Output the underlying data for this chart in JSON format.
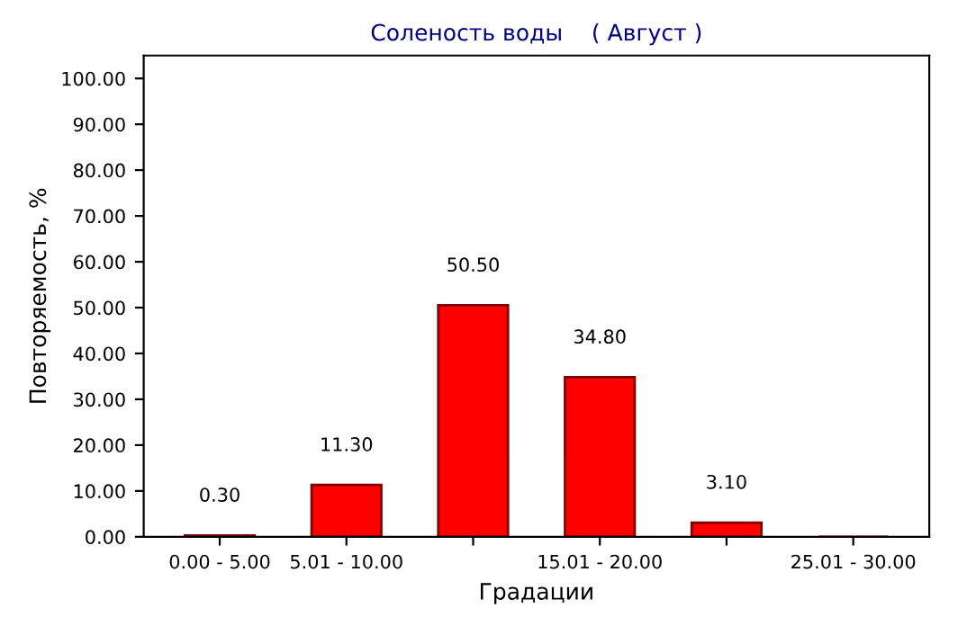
{
  "chart_data": {
    "type": "bar",
    "title": "Соленость воды    ( Август )",
    "xlabel": "Градации",
    "ylabel": "Повторяемость, %",
    "categories": [
      "0.00 - 5.00",
      "5.01 - 10.00",
      null,
      "15.01 - 20.00",
      null,
      "25.01 - 30.00"
    ],
    "values": [
      0.3,
      11.3,
      50.5,
      34.8,
      3.1,
      null
    ],
    "value_labels": [
      "0.30",
      "11.30",
      "50.50",
      "34.80",
      "3.10",
      null
    ],
    "color": "#ff0000",
    "ylim": [
      0,
      105
    ],
    "yticks": [
      {
        "value": 0,
        "label": "0.00"
      },
      {
        "value": 10,
        "label": "10.00"
      },
      {
        "value": 20,
        "label": "20.00"
      },
      {
        "value": 30,
        "label": "30.00"
      },
      {
        "value": 40,
        "label": "40.00"
      },
      {
        "value": 50,
        "label": "50.00"
      },
      {
        "value": 60,
        "label": "60.00"
      },
      {
        "value": 70,
        "label": "70.00"
      },
      {
        "value": 80,
        "label": "80.00"
      },
      {
        "value": 90,
        "label": "90.00"
      },
      {
        "value": 100,
        "label": "100.00"
      }
    ],
    "grid": false
  }
}
